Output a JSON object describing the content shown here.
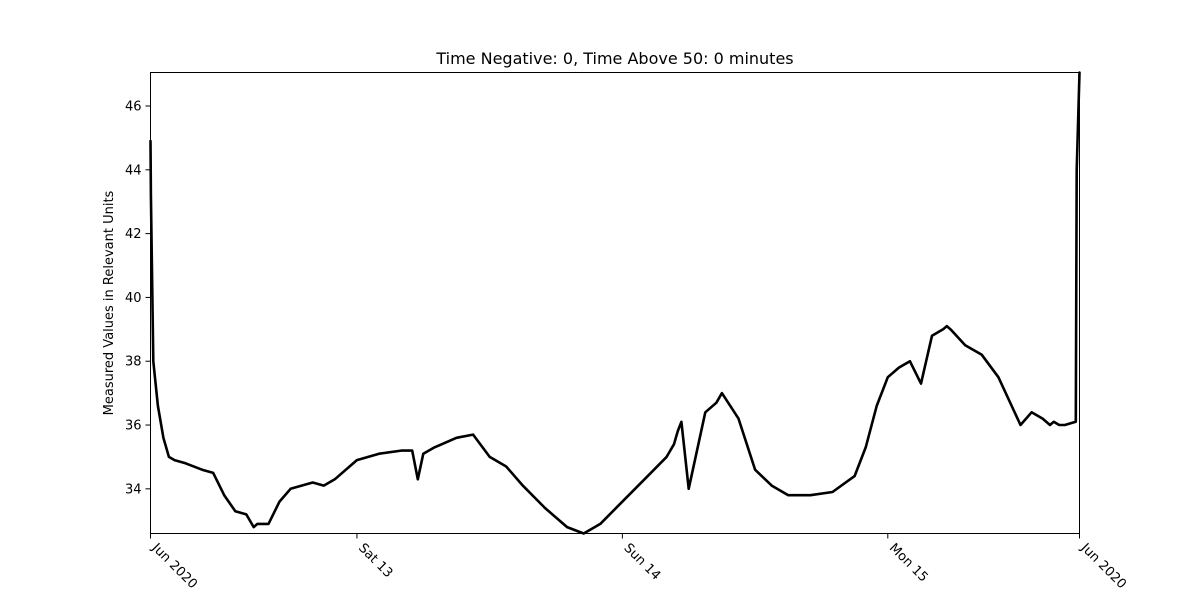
{
  "chart_data": {
    "type": "line",
    "title": "Time Negative: 0, Time Above 50: 0 minutes",
    "xlabel": "",
    "ylabel": "Measured Values in Relevant Units",
    "xlim": [
      "2020-06-12T05:20",
      "2020-06-15T17:20"
    ],
    "ylim": [
      32.6,
      47.05
    ],
    "grid": false,
    "x_ticks": [
      {
        "value": "2020-06-12T05:20",
        "label": "Jun 2020"
      },
      {
        "value": "2020-06-13T00:00",
        "label": "Sat 13"
      },
      {
        "value": "2020-06-14T00:00",
        "label": "Sun 14"
      },
      {
        "value": "2020-06-15T00:00",
        "label": "Mon 15"
      },
      {
        "value": "2020-06-15T17:20",
        "label": "Jun 2020"
      }
    ],
    "y_ticks": [
      34,
      36,
      38,
      40,
      42,
      44,
      46
    ],
    "series": [
      {
        "color": "#000000",
        "x": [
          "2020-06-12T05:20",
          "2020-06-12T05:22",
          "2020-06-12T05:35",
          "2020-06-12T06:00",
          "2020-06-12T06:30",
          "2020-06-12T07:00",
          "2020-06-12T07:30",
          "2020-06-12T08:30",
          "2020-06-12T10:00",
          "2020-06-12T11:00",
          "2020-06-12T12:00",
          "2020-06-12T13:00",
          "2020-06-12T14:00",
          "2020-06-12T14:40",
          "2020-06-12T15:00",
          "2020-06-12T16:00",
          "2020-06-12T17:00",
          "2020-06-12T18:00",
          "2020-06-12T19:00",
          "2020-06-12T20:00",
          "2020-06-12T21:00",
          "2020-06-12T22:00",
          "2020-06-13T00:00",
          "2020-06-13T02:00",
          "2020-06-13T04:00",
          "2020-06-13T05:00",
          "2020-06-13T05:30",
          "2020-06-13T06:00",
          "2020-06-13T07:00",
          "2020-06-13T09:00",
          "2020-06-13T10:30",
          "2020-06-13T12:00",
          "2020-06-13T13:30",
          "2020-06-13T15:00",
          "2020-06-13T17:00",
          "2020-06-13T19:00",
          "2020-06-13T20:30",
          "2020-06-13T22:00",
          "2020-06-14T00:00",
          "2020-06-14T02:00",
          "2020-06-14T04:00",
          "2020-06-14T04:40",
          "2020-06-14T05:00",
          "2020-06-14T05:20",
          "2020-06-14T06:00",
          "2020-06-14T07:30",
          "2020-06-14T08:30",
          "2020-06-14T09:00",
          "2020-06-14T10:30",
          "2020-06-14T12:00",
          "2020-06-14T13:30",
          "2020-06-14T15:00",
          "2020-06-14T17:00",
          "2020-06-14T19:00",
          "2020-06-14T21:00",
          "2020-06-14T22:00",
          "2020-06-14T23:00",
          "2020-06-15T00:00",
          "2020-06-15T01:00",
          "2020-06-15T02:00",
          "2020-06-15T03:00",
          "2020-06-15T04:00",
          "2020-06-15T05:00",
          "2020-06-15T05:20",
          "2020-06-15T05:40",
          "2020-06-15T07:00",
          "2020-06-15T08:30",
          "2020-06-15T10:00",
          "2020-06-15T12:00",
          "2020-06-15T13:00",
          "2020-06-15T14:00",
          "2020-06-15T14:40",
          "2020-06-15T15:00",
          "2020-06-15T15:30",
          "2020-06-15T16:00",
          "2020-06-15T17:00",
          "2020-06-15T17:05",
          "2020-06-15T17:20"
        ],
        "y": [
          44.9,
          43.2,
          38.0,
          36.6,
          35.6,
          35.0,
          34.9,
          34.8,
          34.6,
          34.5,
          33.8,
          33.3,
          33.2,
          32.8,
          32.9,
          32.9,
          33.6,
          34.0,
          34.1,
          34.2,
          34.1,
          34.3,
          34.9,
          35.1,
          35.2,
          35.2,
          34.3,
          35.1,
          35.3,
          35.6,
          35.7,
          35.0,
          34.7,
          34.1,
          33.4,
          32.8,
          32.6,
          32.9,
          33.6,
          34.3,
          35.0,
          35.4,
          35.8,
          36.1,
          34.0,
          36.4,
          36.7,
          37.0,
          36.2,
          34.6,
          34.1,
          33.8,
          33.8,
          33.9,
          34.4,
          35.3,
          36.6,
          37.5,
          37.8,
          38.0,
          37.3,
          38.8,
          39.0,
          39.1,
          39.0,
          38.5,
          38.2,
          37.5,
          36.0,
          36.4,
          36.2,
          36.0,
          36.1,
          36.0,
          36.0,
          36.1,
          44.0,
          47.05
        ]
      }
    ]
  }
}
